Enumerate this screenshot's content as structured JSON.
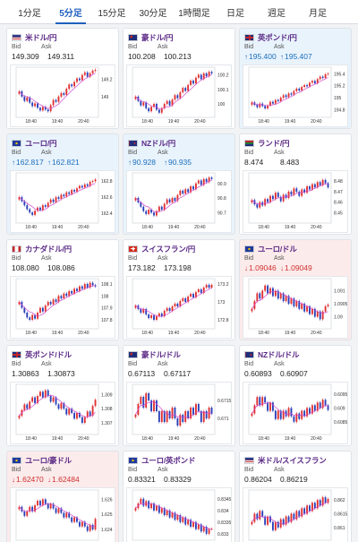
{
  "tabs": [
    {
      "label": "1分足",
      "active": false
    },
    {
      "label": "5分足",
      "active": true
    },
    {
      "label": "15分足",
      "active": false
    },
    {
      "label": "30分足",
      "active": false
    },
    {
      "label": "1時間足",
      "active": false
    },
    {
      "label": "日足",
      "active": false
    },
    {
      "label": "週足",
      "active": false
    },
    {
      "label": "月足",
      "active": false
    }
  ],
  "bid_label": "Bid",
  "ask_label": "Ask",
  "colors": {
    "up_candle": "#e03030",
    "down_candle": "#2a3fb8",
    "ma_line": "#d24cd0",
    "up_text": "#1b6fbe",
    "down_text": "#d03030"
  },
  "cards": [
    {
      "pair": "米ドル/円",
      "flag": "us",
      "bid": "149.309",
      "ask": "149.311",
      "direction": "none",
      "bg": "none",
      "chart_data": {
        "type": "candlestick",
        "x_ticks": [
          "18:40",
          "19:40",
          "20:40"
        ],
        "y_ticks": [
          "149.2",
          "149"
        ],
        "ylim": [
          148.78,
          149.32
        ],
        "closes": [
          149.06,
          149.0,
          148.95,
          148.99,
          148.93,
          148.89,
          148.92,
          148.87,
          148.84,
          148.88,
          148.85,
          148.83,
          148.9,
          148.96,
          148.94,
          149.0,
          149.04,
          149.02,
          149.09,
          149.14,
          149.12,
          149.17,
          149.21,
          149.19,
          149.25,
          149.28,
          149.23,
          149.27,
          149.3,
          149.31
        ]
      }
    },
    {
      "pair": "豪ドル/円",
      "flag": "au",
      "bid": "100.208",
      "ask": "100.213",
      "direction": "none",
      "bg": "none",
      "chart_data": {
        "type": "candlestick",
        "x_ticks": [
          "18:40",
          "19:40",
          "20:40"
        ],
        "y_ticks": [
          "100.2",
          "100.1",
          "100"
        ],
        "ylim": [
          99.92,
          100.24
        ],
        "closes": [
          100.05,
          100.02,
          99.99,
          100.01,
          99.97,
          99.95,
          99.98,
          100.0,
          99.96,
          99.94,
          99.97,
          100.0,
          100.02,
          99.99,
          100.03,
          100.06,
          100.04,
          100.08,
          100.11,
          100.09,
          100.13,
          100.16,
          100.14,
          100.18,
          100.2,
          100.17,
          100.21,
          100.19,
          100.22,
          100.21
        ]
      }
    },
    {
      "pair": "英ポンド/円",
      "flag": "uk",
      "bid": "195.400",
      "ask": "195.407",
      "direction": "up",
      "bg": "up",
      "chart_data": {
        "type": "candlestick",
        "x_ticks": [
          "18:40",
          "19:40",
          "20:40"
        ],
        "y_ticks": [
          "195.4",
          "195.2",
          "195",
          "194.8"
        ],
        "ylim": [
          194.7,
          195.48
        ],
        "closes": [
          194.92,
          194.88,
          194.84,
          194.9,
          194.86,
          194.82,
          194.87,
          194.93,
          194.9,
          194.96,
          194.94,
          195.0,
          195.04,
          195.01,
          195.07,
          195.05,
          195.11,
          195.15,
          195.12,
          195.18,
          195.21,
          195.19,
          195.25,
          195.28,
          195.24,
          195.31,
          195.35,
          195.33,
          195.39,
          195.4
        ]
      }
    },
    {
      "pair": "ユーロ/円",
      "flag": "eu",
      "bid": "162.817",
      "ask": "162.821",
      "direction": "up",
      "bg": "up",
      "chart_data": {
        "type": "candlestick",
        "x_ticks": [
          "18:40",
          "19:40",
          "20:40"
        ],
        "y_ticks": [
          "162.8",
          "162.6",
          "162.4"
        ],
        "ylim": [
          162.3,
          162.88
        ],
        "closes": [
          162.6,
          162.55,
          162.5,
          162.45,
          162.41,
          162.38,
          162.43,
          162.47,
          162.44,
          162.5,
          162.48,
          162.53,
          162.57,
          162.54,
          162.6,
          162.58,
          162.63,
          162.61,
          162.66,
          162.64,
          162.69,
          162.67,
          162.71,
          162.74,
          162.72,
          162.76,
          162.74,
          162.79,
          162.8,
          162.82
        ]
      }
    },
    {
      "pair": "NZドル/円",
      "flag": "nz",
      "bid": "90.928",
      "ask": "90.935",
      "direction": "up",
      "bg": "up",
      "chart_data": {
        "type": "candlestick",
        "x_ticks": [
          "18:40",
          "19:40",
          "20:40"
        ],
        "y_ticks": [
          "90.9",
          "90.8",
          "90.7"
        ],
        "ylim": [
          90.64,
          90.96
        ],
        "closes": [
          90.8,
          90.77,
          90.74,
          90.71,
          90.69,
          90.72,
          90.7,
          90.68,
          90.71,
          90.74,
          90.72,
          90.76,
          90.79,
          90.77,
          90.8,
          90.78,
          90.82,
          90.85,
          90.83,
          90.86,
          90.84,
          90.88,
          90.86,
          90.9,
          90.92,
          90.89,
          90.93,
          90.91,
          90.94,
          90.93
        ]
      }
    },
    {
      "pair": "ランド/円",
      "flag": "za",
      "bid": "8.474",
      "ask": "8.483",
      "direction": "none",
      "bg": "none",
      "chart_data": {
        "type": "candlestick",
        "x_ticks": [
          "18:40",
          "19:40",
          "20:40"
        ],
        "y_ticks": [
          "8.48",
          "8.47",
          "8.46",
          "8.45"
        ],
        "ylim": [
          8.442,
          8.486
        ],
        "closes": [
          8.462,
          8.458,
          8.455,
          8.46,
          8.457,
          8.463,
          8.46,
          8.466,
          8.463,
          8.469,
          8.465,
          8.461,
          8.467,
          8.464,
          8.47,
          8.467,
          8.473,
          8.47,
          8.466,
          8.472,
          8.469,
          8.475,
          8.472,
          8.477,
          8.474,
          8.479,
          8.476,
          8.481,
          8.478,
          8.474
        ]
      }
    },
    {
      "pair": "カナダドル/円",
      "flag": "ca",
      "bid": "108.080",
      "ask": "108.086",
      "direction": "none",
      "bg": "none",
      "chart_data": {
        "type": "candlestick",
        "x_ticks": [
          "18:40",
          "19:40",
          "20:40"
        ],
        "y_ticks": [
          "108.1",
          "108",
          "107.9",
          "107.8"
        ],
        "ylim": [
          107.74,
          108.13
        ],
        "closes": [
          107.95,
          107.9,
          107.86,
          107.82,
          107.8,
          107.84,
          107.81,
          107.86,
          107.9,
          107.87,
          107.92,
          107.95,
          107.93,
          107.97,
          107.95,
          108.0,
          107.98,
          108.02,
          108.0,
          108.04,
          108.02,
          108.06,
          108.04,
          108.08,
          108.06,
          108.1,
          108.07,
          108.11,
          108.09,
          108.08
        ]
      }
    },
    {
      "pair": "スイスフラン/円",
      "flag": "ch",
      "bid": "173.182",
      "ask": "173.198",
      "direction": "none",
      "bg": "none",
      "chart_data": {
        "type": "candlestick",
        "x_ticks": [
          "18:40",
          "19:40",
          "20:40"
        ],
        "y_ticks": [
          "173.2",
          "173",
          "172.8"
        ],
        "ylim": [
          172.72,
          173.24
        ],
        "closes": [
          172.96,
          172.92,
          172.88,
          172.92,
          172.86,
          172.82,
          172.85,
          172.8,
          172.84,
          172.87,
          172.84,
          172.9,
          172.93,
          172.9,
          172.95,
          172.98,
          172.95,
          173.01,
          173.04,
          173.0,
          173.06,
          173.09,
          173.05,
          173.11,
          173.14,
          173.1,
          173.16,
          173.19,
          173.16,
          173.19
        ]
      }
    },
    {
      "pair": "ユーロ/ドル",
      "flag": "eu",
      "bid": "1.09046",
      "ask": "1.09049",
      "direction": "down",
      "bg": "down",
      "chart_data": {
        "type": "candlestick",
        "x_ticks": [
          "18:40",
          "19:40",
          "20:40"
        ],
        "y_ticks": [
          "1.091",
          "1.0905",
          "1.09"
        ],
        "ylim": [
          1.0896,
          1.0914
        ],
        "closes": [
          1.0903,
          1.0906,
          1.0909,
          1.0907,
          1.091,
          1.0912,
          1.0909,
          1.0911,
          1.0908,
          1.091,
          1.0907,
          1.0909,
          1.0906,
          1.0908,
          1.0905,
          1.0907,
          1.0904,
          1.0906,
          1.0903,
          1.0905,
          1.0902,
          1.0904,
          1.0901,
          1.0903,
          1.09,
          1.0902,
          1.0899,
          1.0902,
          1.0904,
          1.09046
        ]
      }
    },
    {
      "pair": "英ポンド/ドル",
      "flag": "uk",
      "bid": "1.30863",
      "ask": "1.30873",
      "direction": "none",
      "bg": "none",
      "chart_data": {
        "type": "candlestick",
        "x_ticks": [
          "18:40",
          "19:40",
          "20:40"
        ],
        "y_ticks": [
          "1.309",
          "1.308",
          "1.307"
        ],
        "ylim": [
          1.3063,
          1.3096
        ],
        "closes": [
          1.3075,
          1.3079,
          1.3083,
          1.308,
          1.3085,
          1.3088,
          1.3084,
          1.3089,
          1.3092,
          1.3088,
          1.3093,
          1.3089,
          1.3085,
          1.3088,
          1.3083,
          1.308,
          1.3084,
          1.308,
          1.3076,
          1.308,
          1.3077,
          1.3073,
          1.3077,
          1.3074,
          1.307,
          1.3074,
          1.3078,
          1.3075,
          1.3082,
          1.30863
        ]
      }
    },
    {
      "pair": "豪ドル/ドル",
      "flag": "au",
      "bid": "0.67113",
      "ask": "0.67117",
      "direction": "none",
      "bg": "none",
      "chart_data": {
        "type": "candlestick",
        "x_ticks": [
          "18:40",
          "19:40",
          "20:40"
        ],
        "y_ticks": [
          "0.6715",
          "0.671"
        ],
        "ylim": [
          0.6706,
          0.6719
        ],
        "closes": [
          0.6711,
          0.6714,
          0.6716,
          0.6713,
          0.6717,
          0.6715,
          0.6712,
          0.6715,
          0.6712,
          0.6709,
          0.6712,
          0.6709,
          0.6712,
          0.671,
          0.6713,
          0.671,
          0.6708,
          0.6711,
          0.6709,
          0.6712,
          0.671,
          0.6713,
          0.6711,
          0.6714,
          0.6712,
          0.6709,
          0.6712,
          0.671,
          0.6713,
          0.67113
        ]
      }
    },
    {
      "pair": "NZドル/ドル",
      "flag": "nz",
      "bid": "0.60893",
      "ask": "0.60907",
      "direction": "none",
      "bg": "none",
      "chart_data": {
        "type": "candlestick",
        "x_ticks": [
          "18:40",
          "19:40",
          "20:40"
        ],
        "y_ticks": [
          "0.6095",
          "0.609",
          "0.6085"
        ],
        "ylim": [
          0.6081,
          0.6098
        ],
        "closes": [
          0.6088,
          0.6091,
          0.6094,
          0.6091,
          0.6094,
          0.6092,
          0.6089,
          0.6092,
          0.6089,
          0.6086,
          0.6089,
          0.6086,
          0.6089,
          0.6087,
          0.609,
          0.6087,
          0.6085,
          0.6088,
          0.6086,
          0.6089,
          0.6087,
          0.609,
          0.6088,
          0.6091,
          0.6089,
          0.6092,
          0.609,
          0.6093,
          0.6091,
          0.60893
        ]
      }
    },
    {
      "pair": "ユーロ/豪ドル",
      "flag": "eu",
      "bid": "1.62470",
      "ask": "1.62484",
      "direction": "down",
      "bg": "down",
      "chart_data": {
        "type": "candlestick",
        "x_ticks": [
          "18:40",
          "19:40",
          "20:40"
        ],
        "y_ticks": [
          "1.626",
          "1.625",
          "1.624"
        ],
        "ylim": [
          1.6234,
          1.6265
        ],
        "closes": [
          1.6255,
          1.6252,
          1.6249,
          1.6252,
          1.6255,
          1.6252,
          1.6256,
          1.6259,
          1.6256,
          1.626,
          1.6257,
          1.6254,
          1.6257,
          1.6254,
          1.6251,
          1.6254,
          1.6251,
          1.6248,
          1.6251,
          1.6248,
          1.6245,
          1.6248,
          1.6245,
          1.6242,
          1.6245,
          1.6242,
          1.6239,
          1.6243,
          1.624,
          1.6247
        ]
      }
    },
    {
      "pair": "ユーロ/英ポンド",
      "flag": "eu",
      "bid": "0.83321",
      "ask": "0.83329",
      "direction": "none",
      "bg": "none",
      "chart_data": {
        "type": "candlestick",
        "x_ticks": [
          "18:40",
          "19:40",
          "20:40"
        ],
        "y_ticks": [
          "0.8345",
          "0.834",
          "0.8335",
          "0.833"
        ],
        "ylim": [
          0.8328,
          0.8348
        ],
        "closes": [
          0.8341,
          0.8343,
          0.8345,
          0.8342,
          0.8344,
          0.8341,
          0.8343,
          0.834,
          0.8342,
          0.8339,
          0.8341,
          0.8338,
          0.834,
          0.8337,
          0.8339,
          0.8336,
          0.8338,
          0.8335,
          0.8337,
          0.8334,
          0.8336,
          0.8333,
          0.8335,
          0.8332,
          0.8334,
          0.8331,
          0.8333,
          0.833,
          0.8332,
          0.83321
        ]
      }
    },
    {
      "pair": "米ドル/スイスフラン",
      "flag": "us",
      "bid": "0.86204",
      "ask": "0.86219",
      "direction": "none",
      "bg": "none",
      "chart_data": {
        "type": "candlestick",
        "x_ticks": [
          "18:40",
          "19:40",
          "20:40"
        ],
        "y_ticks": [
          "0.862",
          "0.8615",
          "0.861"
        ],
        "ylim": [
          0.8606,
          0.8623
        ],
        "closes": [
          0.8612,
          0.8615,
          0.8613,
          0.8616,
          0.8614,
          0.8611,
          0.8614,
          0.8612,
          0.8609,
          0.8612,
          0.861,
          0.8613,
          0.8611,
          0.8614,
          0.8612,
          0.8615,
          0.8613,
          0.8616,
          0.8614,
          0.8617,
          0.8615,
          0.8618,
          0.8616,
          0.8619,
          0.8617,
          0.862,
          0.8618,
          0.8621,
          0.8619,
          0.86204
        ]
      }
    }
  ]
}
